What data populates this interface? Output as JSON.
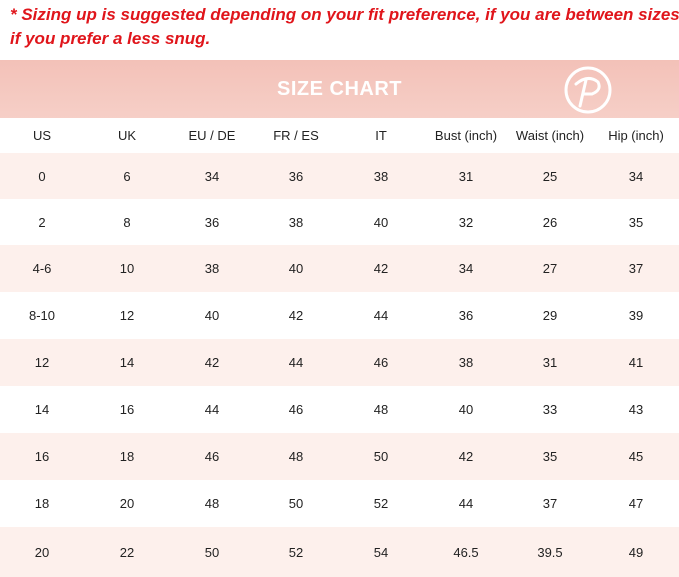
{
  "note": {
    "lines": [
      "* Sizing up is suggested depending on your fit preference, if you are between sizes or",
      "if you prefer a less snug."
    ]
  },
  "header": {
    "title": "SIZE CHART"
  },
  "table": {
    "columns": [
      "US",
      "UK",
      "EU / DE",
      "FR / ES",
      "IT",
      "Bust (inch)",
      "Waist (inch)",
      "Hip (inch)"
    ],
    "rows": [
      [
        0,
        6,
        34,
        36,
        38,
        31,
        25,
        34
      ],
      [
        2,
        8,
        36,
        38,
        40,
        32,
        26,
        35
      ],
      [
        "4-6",
        10,
        38,
        40,
        42,
        34,
        27,
        37
      ],
      [
        "8-10",
        12,
        40,
        42,
        44,
        36,
        29,
        39
      ],
      [
        12,
        14,
        42,
        44,
        46,
        38,
        31,
        41
      ],
      [
        14,
        16,
        44,
        46,
        48,
        40,
        33,
        43
      ],
      [
        16,
        18,
        46,
        48,
        50,
        42,
        35,
        45
      ],
      [
        18,
        20,
        48,
        50,
        52,
        44,
        37,
        47
      ],
      [
        20,
        22,
        50,
        52,
        54,
        46.5,
        39.5,
        49
      ]
    ]
  }
}
